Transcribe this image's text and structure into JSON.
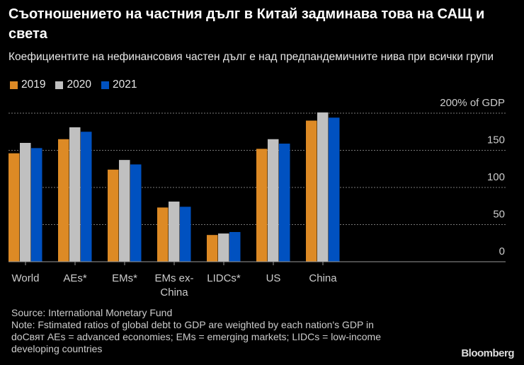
{
  "title": "Съотношението на частния дълг в Китай задминава това на САЩ и света",
  "subtitle": "Коефициентите на нефинансовия частен дълг е над предпандемичните нива при всички групи",
  "footer": {
    "source": "Source: International Monetary Fund",
    "note_line1": "Note: Fstimated ratios of global debt to GDP are weighted by each nation's GDP in",
    "note_line2": "doСвят  AEs = advanced economies; EMs = emerging markets; LIDCs = low-income",
    "note_line3": "developing countries",
    "brand": "Bloomberg"
  },
  "chart_data": {
    "type": "bar",
    "title": "Съотношението на частния дълг в Китай задминава това на САЩ и света",
    "categories": [
      "World",
      "AEs*",
      "EMs*",
      "EMs ex-\nChina",
      "LIDCs*",
      "US",
      "China"
    ],
    "series": [
      {
        "name": "2019",
        "color": "#dd8a25",
        "values": [
          146,
          165,
          124,
          73,
          36,
          152,
          190
        ]
      },
      {
        "name": "2020",
        "color": "#c0c0c0",
        "values": [
          160,
          181,
          137,
          81,
          38,
          165,
          201
        ]
      },
      {
        "name": "2021",
        "color": "#0051c0",
        "values": [
          153,
          175,
          131,
          74,
          40,
          159,
          194
        ]
      }
    ],
    "ylim": [
      0,
      200
    ],
    "yticks": [
      "0",
      "50",
      "100",
      "150",
      "200% of GDP"
    ],
    "ytick_values": [
      0,
      50,
      100,
      150,
      200
    ],
    "yaxis_position": "right",
    "grid": true,
    "legend": "top-left"
  }
}
